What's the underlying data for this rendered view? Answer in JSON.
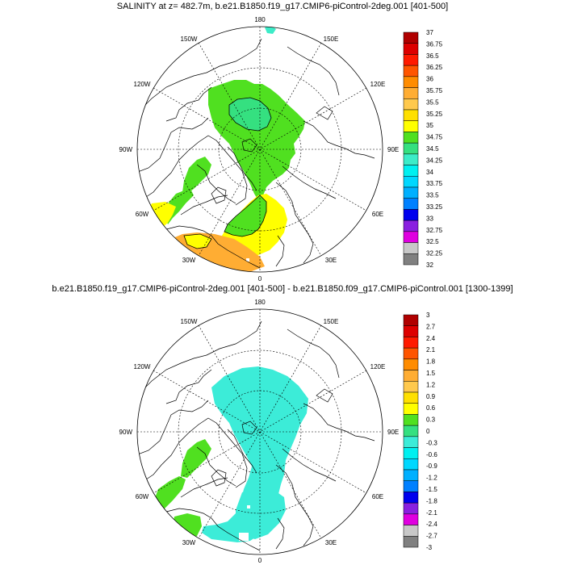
{
  "panels": [
    {
      "title": "SALINITY at z= 482.7m, b.e21.B1850.f19_g17.CMIP6-piControl-2deg.001 [401-500]",
      "colorbar": {
        "labels": [
          "37",
          "36.75",
          "36.5",
          "36.25",
          "36",
          "35.75",
          "35.5",
          "35.25",
          "35",
          "34.75",
          "34.5",
          "34.25",
          "34",
          "33.75",
          "33.5",
          "33.25",
          "33",
          "32.75",
          "32.5",
          "32.25",
          "32"
        ],
        "colors": [
          "#b00000",
          "#dd0000",
          "#ff1a00",
          "#ff5500",
          "#ff8c00",
          "#ffad33",
          "#ffc94d",
          "#ffe000",
          "#ffff00",
          "#50e020",
          "#35e080",
          "#3cecc8",
          "#00f0f0",
          "#00d8ff",
          "#00b0ff",
          "#0080ff",
          "#0000ee",
          "#8a20e0",
          "#e000e0",
          "#c8c8c8",
          "#808080"
        ]
      },
      "fields": {
        "green": "#50e020",
        "green_core": "#35e080",
        "yellow": "#ffff00",
        "orange": "#ffad33",
        "cyan": "#3cecc8"
      }
    },
    {
      "title": "b.e21.B1850.f19_g17.CMIP6-piControl-2deg.001 [401-500] - b.e21.B1850.f09_g17.CMIP6-piControl.001 [1300-1399]",
      "colorbar": {
        "labels": [
          "3",
          "2.7",
          "2.4",
          "2.1",
          "1.8",
          "1.5",
          "1.2",
          "0.9",
          "0.6",
          "0.3",
          "0",
          "-0.3",
          "-0.6",
          "-0.9",
          "-1.2",
          "-1.5",
          "-1.8",
          "-2.1",
          "-2.4",
          "-2.7",
          "-3"
        ],
        "colors": [
          "#b00000",
          "#dd0000",
          "#ff1a00",
          "#ff5500",
          "#ff8c00",
          "#ffad33",
          "#ffc94d",
          "#ffe000",
          "#ffff00",
          "#50e020",
          "#35e080",
          "#3cecd8",
          "#00f0f0",
          "#00d8ff",
          "#00b0ff",
          "#0080ff",
          "#0000ee",
          "#8a20e0",
          "#e000e0",
          "#c8c8c8",
          "#808080"
        ]
      },
      "fields": {
        "cyan": "#3cecd8",
        "green": "#50e020"
      }
    }
  ],
  "lon_labels": {
    "top": "180",
    "upper_left": "150W",
    "upper_right": "150E",
    "left_high": "120W",
    "right_high": "120E",
    "left": "90W",
    "right": "90E",
    "left_low": "60W",
    "right_low": "60E",
    "lower_left": "30W",
    "lower_right": "30E",
    "bottom": "0"
  }
}
